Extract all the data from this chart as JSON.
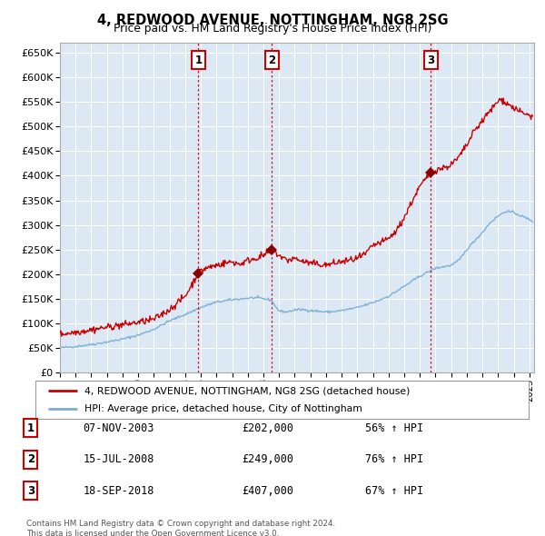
{
  "title": "4, REDWOOD AVENUE, NOTTINGHAM, NG8 2SG",
  "subtitle": "Price paid vs. HM Land Registry's House Price Index (HPI)",
  "legend_line1": "4, REDWOOD AVENUE, NOTTINGHAM, NG8 2SG (detached house)",
  "legend_line2": "HPI: Average price, detached house, City of Nottingham",
  "footer": "Contains HM Land Registry data © Crown copyright and database right 2024.\nThis data is licensed under the Open Government Licence v3.0.",
  "purchases": [
    {
      "label": "1",
      "date": "07-NOV-2003",
      "price": 202000,
      "pct": "56%",
      "x_year": 2003.85
    },
    {
      "label": "2",
      "date": "15-JUL-2008",
      "price": 249000,
      "pct": "76%",
      "x_year": 2008.54
    },
    {
      "label": "3",
      "date": "18-SEP-2018",
      "price": 407000,
      "pct": "67%",
      "x_year": 2018.71
    }
  ],
  "bg_color": "#dce9f5",
  "red_line_color": "#cc0000",
  "blue_line_color": "#7aadd4",
  "ylim": [
    0,
    670000
  ],
  "xlim_start": 1995.0,
  "xlim_end": 2025.3,
  "hpi_anchors_x": [
    1995.0,
    1996.0,
    1997.0,
    1998.0,
    1999.0,
    2000.0,
    2001.0,
    2002.0,
    2003.0,
    2004.0,
    2004.5,
    2005.0,
    2006.0,
    2007.0,
    2007.5,
    2008.0,
    2008.5,
    2009.0,
    2009.5,
    2010.0,
    2010.5,
    2011.0,
    2012.0,
    2012.5,
    2013.0,
    2014.0,
    2015.0,
    2016.0,
    2017.0,
    2018.0,
    2019.0,
    2020.0,
    2020.5,
    2021.0,
    2021.5,
    2022.0,
    2022.5,
    2023.0,
    2023.5,
    2024.0,
    2024.5,
    2025.2
  ],
  "hpi_anchors_y": [
    50000,
    53000,
    57000,
    62000,
    68000,
    76000,
    88000,
    105000,
    118000,
    132000,
    138000,
    143000,
    148000,
    151000,
    152000,
    150000,
    147000,
    125000,
    123000,
    127000,
    128000,
    126000,
    123000,
    124000,
    126000,
    132000,
    142000,
    155000,
    175000,
    196000,
    212000,
    218000,
    228000,
    250000,
    268000,
    285000,
    305000,
    318000,
    328000,
    325000,
    318000,
    308000
  ],
  "red_anchors_x": [
    1995.0,
    1996.0,
    1997.0,
    1998.0,
    1999.0,
    2000.0,
    2001.0,
    2002.0,
    2003.0,
    2003.85,
    2004.3,
    2005.0,
    2005.5,
    2006.0,
    2006.5,
    2007.0,
    2007.5,
    2008.0,
    2008.54,
    2009.0,
    2009.5,
    2010.0,
    2010.5,
    2011.0,
    2011.5,
    2012.0,
    2012.5,
    2013.0,
    2013.5,
    2014.0,
    2014.5,
    2015.0,
    2015.5,
    2016.0,
    2016.5,
    2017.0,
    2017.5,
    2018.0,
    2018.71,
    2019.0,
    2019.5,
    2020.0,
    2020.5,
    2021.0,
    2021.5,
    2022.0,
    2022.5,
    2023.0,
    2023.3,
    2023.5,
    2024.0,
    2024.5,
    2025.2
  ],
  "red_anchors_y": [
    78000,
    82000,
    87000,
    92000,
    97000,
    102000,
    108000,
    128000,
    155000,
    202000,
    212000,
    218000,
    222000,
    225000,
    220000,
    228000,
    232000,
    238000,
    249000,
    238000,
    228000,
    232000,
    226000,
    222000,
    220000,
    218000,
    222000,
    225000,
    228000,
    232000,
    240000,
    258000,
    264000,
    272000,
    288000,
    315000,
    348000,
    378000,
    407000,
    412000,
    416000,
    422000,
    438000,
    462000,
    492000,
    512000,
    532000,
    552000,
    555000,
    548000,
    538000,
    528000,
    520000
  ]
}
